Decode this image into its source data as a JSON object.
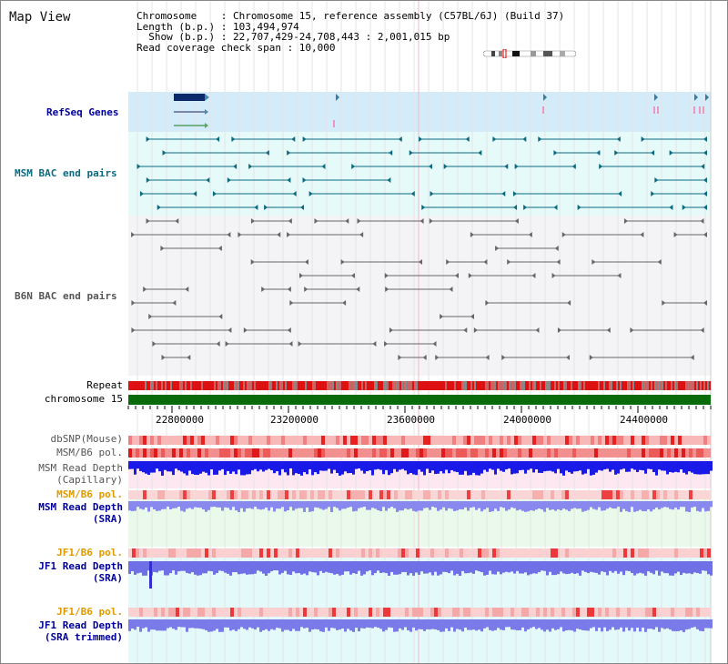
{
  "page": {
    "title": "Map View"
  },
  "info": {
    "line1": "Chromosome    : Chromosome 15, reference assembly (C57BL/6J) (Build 37)",
    "line2": "Length (b.p.) : 103,494,974",
    "line3": "  Show (b.p.) : 22,707,429-24,708,443 : 2,001,015 bp",
    "line4": "Read coverage check span : 10,000"
  },
  "tracks": {
    "refseq": "RefSeq Genes",
    "msm_bac": "MSM BAC end pairs",
    "b6n_bac": "B6N BAC end pairs",
    "repeat": "Repeat",
    "chromosome": "chromosome 15",
    "dbsnp": "dbSNP(Mouse)",
    "msm_pol": "MSM/B6 pol.",
    "msm_depth_cap_1": "MSM Read Depth",
    "msm_depth_cap_2": "(Capillary)",
    "msm_pol2": "MSM/B6 pol.",
    "msm_depth_sra_1": "MSM Read Depth",
    "msm_depth_sra_2": "(SRA)",
    "jf1_pol": "JF1/B6 pol.",
    "jf1_depth_sra_1": "JF1 Read Depth",
    "jf1_depth_sra_2": "(SRA)",
    "jf1_pol2": "JF1/B6 pol.",
    "jf1_depth_trim_1": "JF1 Read Depth",
    "jf1_depth_trim_2": "(SRA trimmed)"
  },
  "axis": {
    "ticks": [
      "22800000",
      "23200000",
      "23600000",
      "24000000",
      "24400000"
    ]
  },
  "colors": {
    "refseq_bg": "#d4ecf9",
    "msm_bg": "#e6fafa",
    "b6n_bg": "#f4f4f6",
    "chrom_green": "#0a6b0a",
    "track_label_blue": "#000099",
    "track_label_orange": "#e09900",
    "msm_glyph": "#0b6a80",
    "b6n_glyph": "#666666"
  }
}
